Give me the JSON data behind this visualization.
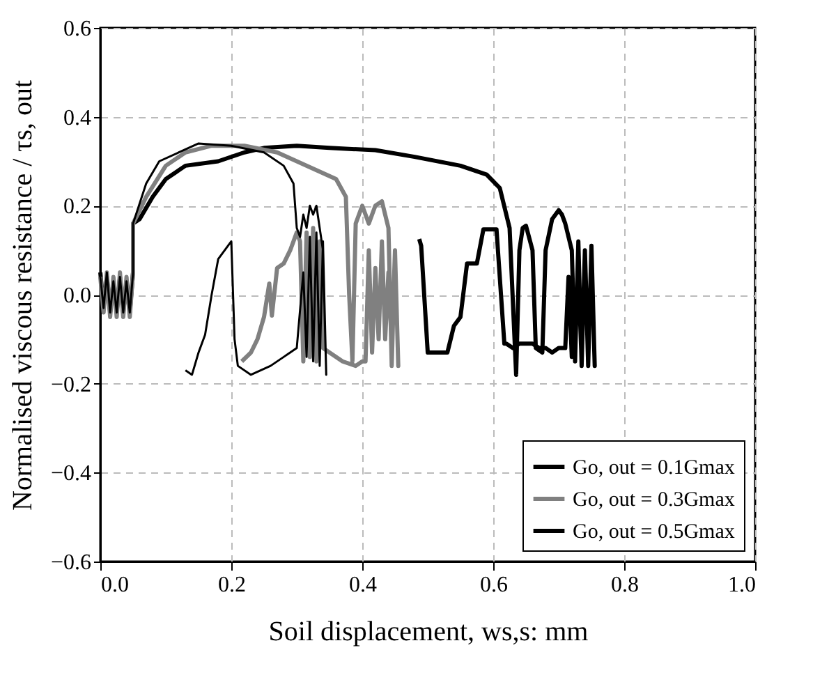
{
  "chart_data": {
    "type": "line",
    "xlabel": "Soil displacement, ws,s: mm",
    "ylabel": "Normalised viscous resistance / τs, out",
    "xlim": [
      0,
      1.0
    ],
    "xticks": [
      {
        "value": 0,
        "label": "0.0"
      },
      0.2,
      0.4,
      0.6,
      0.8,
      {
        "value": 1.0,
        "label": "1.0"
      }
    ],
    "ylim": [
      -0.6,
      0.6
    ],
    "yticks": [
      -0.6,
      -0.4,
      -0.2,
      {
        "value": 0,
        "label": "0.0"
      },
      0.2,
      0.4,
      0.6
    ],
    "grid": true,
    "legend": "bottom right",
    "line_style": "solid",
    "marker": "none",
    "series": [
      {
        "name": "Go, out = 0.1Gmax",
        "color": "#000000",
        "x": [
          0,
          0.005,
          0.01,
          0.015,
          0.02,
          0.025,
          0.03,
          0.035,
          0.04,
          0.045,
          0.05,
          0.05,
          0.06,
          0.08,
          0.1,
          0.13,
          0.18,
          0.22,
          0.25,
          0.3,
          0.35,
          0.42,
          0.48,
          0.55,
          0.59,
          0.61,
          0.625,
          0.635,
          0.64,
          0.645,
          0.65,
          0.66,
          0.665,
          0.67,
          0.675,
          0.68,
          0.69,
          0.7,
          0.705,
          0.71,
          0.72,
          0.725,
          0.73,
          0.735,
          0.74,
          0.745,
          0.75,
          0.755,
          0.75,
          0.745,
          0.74,
          0.735,
          0.73,
          0.72,
          0.715,
          0.71,
          0.7,
          0.69,
          0.68,
          0.67,
          0.66,
          0.65,
          0.64,
          0.63,
          0.62,
          0.617,
          0.605,
          0.585,
          0.575,
          0.56,
          0.55,
          0.54,
          0.53,
          0.52,
          0.51,
          0.5,
          0.49,
          0.487
        ],
        "values": [
          0.05,
          -0.03,
          0.04,
          -0.04,
          0.03,
          -0.04,
          0.04,
          -0.04,
          0.03,
          -0.04,
          0.05,
          0.16,
          0.17,
          0.22,
          0.26,
          0.29,
          0.3,
          0.32,
          0.33,
          0.335,
          0.33,
          0.325,
          0.31,
          0.29,
          0.27,
          0.24,
          0.15,
          -0.18,
          0.1,
          0.15,
          0.155,
          0.1,
          -0.12,
          -0.125,
          -0.13,
          0.1,
          0.17,
          0.19,
          0.18,
          0.16,
          0.1,
          -0.15,
          0.12,
          -0.16,
          0.1,
          -0.16,
          0.11,
          -0.16,
          0.08,
          -0.14,
          0.1,
          -0.15,
          0.05,
          -0.14,
          0.04,
          -0.12,
          -0.12,
          -0.13,
          -0.12,
          -0.12,
          -0.11,
          -0.11,
          -0.11,
          -0.12,
          -0.11,
          -0.11,
          0.147,
          0.147,
          0.07,
          0.07,
          -0.05,
          -0.07,
          -0.13,
          -0.13,
          -0.13,
          -0.13,
          0.11,
          0.125
        ]
      },
      {
        "name": "Go, out = 0.3Gmax",
        "color": "#808080",
        "x": [
          0,
          0.005,
          0.01,
          0.015,
          0.02,
          0.025,
          0.03,
          0.035,
          0.04,
          0.045,
          0.05,
          0.05,
          0.07,
          0.1,
          0.13,
          0.17,
          0.22,
          0.27,
          0.3,
          0.33,
          0.36,
          0.375,
          0.38,
          0.385,
          0.39,
          0.4,
          0.41,
          0.42,
          0.43,
          0.44,
          0.445,
          0.45,
          0.455,
          0.45,
          0.445,
          0.44,
          0.435,
          0.43,
          0.425,
          0.42,
          0.415,
          0.41,
          0.405,
          0.4,
          0.39,
          0.37,
          0.35,
          0.34,
          0.335,
          0.33,
          0.325,
          0.32,
          0.315,
          0.31,
          0.305,
          0.3,
          0.29,
          0.28,
          0.27,
          0.262,
          0.258,
          0.25,
          0.24,
          0.23,
          0.216
        ],
        "values": [
          0.04,
          -0.04,
          0.05,
          -0.05,
          0.04,
          -0.05,
          0.05,
          -0.05,
          0.04,
          -0.05,
          0.05,
          0.16,
          0.22,
          0.29,
          0.32,
          0.335,
          0.335,
          0.32,
          0.3,
          0.28,
          0.26,
          0.22,
          0.0,
          -0.15,
          0.16,
          0.2,
          0.16,
          0.2,
          0.21,
          0.15,
          -0.16,
          0.1,
          -0.16,
          0.1,
          -0.12,
          0.05,
          -0.1,
          0.12,
          -0.1,
          0.06,
          -0.13,
          0.1,
          -0.15,
          -0.15,
          -0.16,
          -0.15,
          -0.13,
          -0.12,
          0.12,
          -0.15,
          0.15,
          -0.14,
          0.14,
          -0.15,
          0.12,
          0.14,
          0.1,
          0.07,
          0.06,
          -0.047,
          0.025,
          -0.05,
          -0.1,
          -0.13,
          -0.15
        ]
      },
      {
        "name": "Go, out = 0.5Gmax",
        "color": "#000000",
        "x": [
          0,
          0.005,
          0.01,
          0.015,
          0.02,
          0.025,
          0.03,
          0.035,
          0.04,
          0.045,
          0.05,
          0.05,
          0.07,
          0.09,
          0.12,
          0.15,
          0.2,
          0.25,
          0.28,
          0.295,
          0.3,
          0.305,
          0.31,
          0.315,
          0.32,
          0.325,
          0.33,
          0.335,
          0.34,
          0.345,
          0.34,
          0.335,
          0.33,
          0.325,
          0.32,
          0.315,
          0.31,
          0.3,
          0.28,
          0.26,
          0.23,
          0.21,
          0.205,
          0.2,
          0.19,
          0.18,
          0.17,
          0.16,
          0.15,
          0.14,
          0.13
        ],
        "values": [
          0.04,
          -0.03,
          0.05,
          -0.04,
          0.03,
          -0.04,
          0.04,
          -0.04,
          0.03,
          -0.04,
          0.05,
          0.16,
          0.25,
          0.3,
          0.32,
          0.34,
          0.335,
          0.32,
          0.29,
          0.25,
          0.15,
          0.13,
          0.18,
          0.15,
          0.2,
          0.18,
          0.2,
          0.15,
          0.1,
          -0.18,
          0.12,
          -0.16,
          0.14,
          -0.15,
          0.13,
          -0.14,
          0.05,
          -0.12,
          -0.14,
          -0.16,
          -0.18,
          -0.16,
          -0.1,
          0.12,
          0.1,
          0.08,
          0.0,
          -0.09,
          -0.13,
          -0.18,
          -0.17
        ]
      }
    ]
  }
}
